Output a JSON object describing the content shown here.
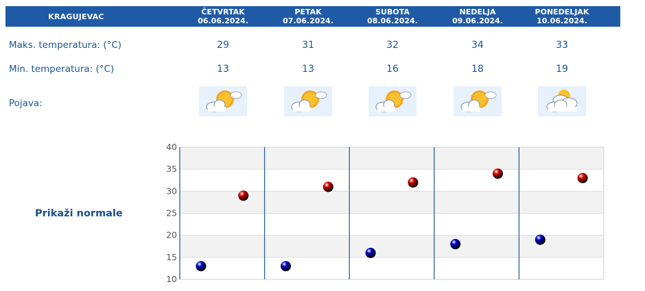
{
  "header": {
    "city": "KRAGUJEVAC"
  },
  "days": [
    {
      "name": "ČETVRTAK",
      "date": "06.06.2024.",
      "max": "29",
      "min": "13",
      "icon": "sun-partly-cloudy-icon"
    },
    {
      "name": "PETAK",
      "date": "07.06.2024.",
      "max": "31",
      "min": "13",
      "icon": "sun-partly-cloudy-icon"
    },
    {
      "name": "SUBOTA",
      "date": "08.06.2024.",
      "max": "32",
      "min": "16",
      "icon": "sun-partly-cloudy-icon"
    },
    {
      "name": "NEDELJA",
      "date": "09.06.2024.",
      "max": "34",
      "min": "18",
      "icon": "sun-partly-cloudy-icon"
    },
    {
      "name": "PONEDELJAK",
      "date": "10.06.2024.",
      "max": "33",
      "min": "19",
      "icon": "cloudy-sun-icon"
    }
  ],
  "rows": {
    "max_label": "Maks. temperatura: (°C)",
    "min_label": "Min. temperatura: (°C)",
    "phenomenon_label": "Pojava:"
  },
  "normals_link": "Prikaži normale",
  "chart_data": {
    "type": "scatter",
    "categories": [
      "06.06.2024.",
      "07.06.2024.",
      "08.06.2024.",
      "09.06.2024.",
      "10.06.2024."
    ],
    "series": [
      {
        "values": [
          29,
          31,
          32,
          34,
          33
        ],
        "color": "#d40000"
      },
      {
        "values": [
          13,
          13,
          16,
          18,
          19
        ],
        "color": "#0000c8"
      }
    ],
    "ylim": [
      10,
      40
    ],
    "yticks": [
      40,
      35,
      30,
      25,
      20,
      15,
      10
    ],
    "grid": true,
    "band_colors": [
      "#f2f2f2",
      "#ffffff"
    ]
  }
}
